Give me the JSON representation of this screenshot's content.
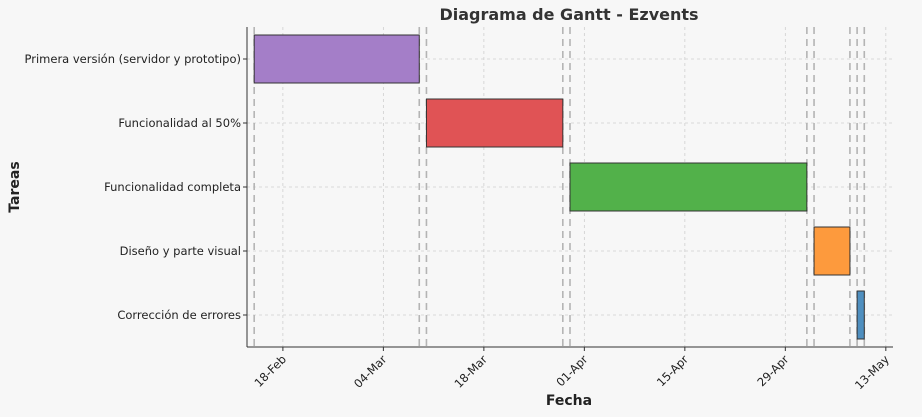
{
  "chart_data": {
    "type": "gantt",
    "title": "Diagrama de Gantt - Ezvents",
    "xlabel": "Fecha",
    "ylabel": "Tareas",
    "x_ticks": [
      "18-Feb",
      "04-Mar",
      "18-Mar",
      "01-Apr",
      "15-Apr",
      "29-Apr",
      "13-May"
    ],
    "grid": true,
    "tasks": [
      {
        "name": "Primera versión (servidor y prototipo)",
        "start": "2024-02-14",
        "end": "2024-03-08",
        "color": "#a47ec8"
      },
      {
        "name": "Funcionalidad al 50%",
        "start": "2024-03-09",
        "end": "2024-03-28",
        "color": "#e05355"
      },
      {
        "name": "Funcionalidad completa",
        "start": "2024-03-29",
        "end": "2024-05-01",
        "color": "#52b14a"
      },
      {
        "name": "Diseño y parte visual",
        "start": "2024-05-02",
        "end": "2024-05-07",
        "color": "#fd9a3d"
      },
      {
        "name": "Corrección de errores",
        "start": "2024-05-08",
        "end": "2024-05-09",
        "color": "#4f8fbf"
      }
    ]
  }
}
